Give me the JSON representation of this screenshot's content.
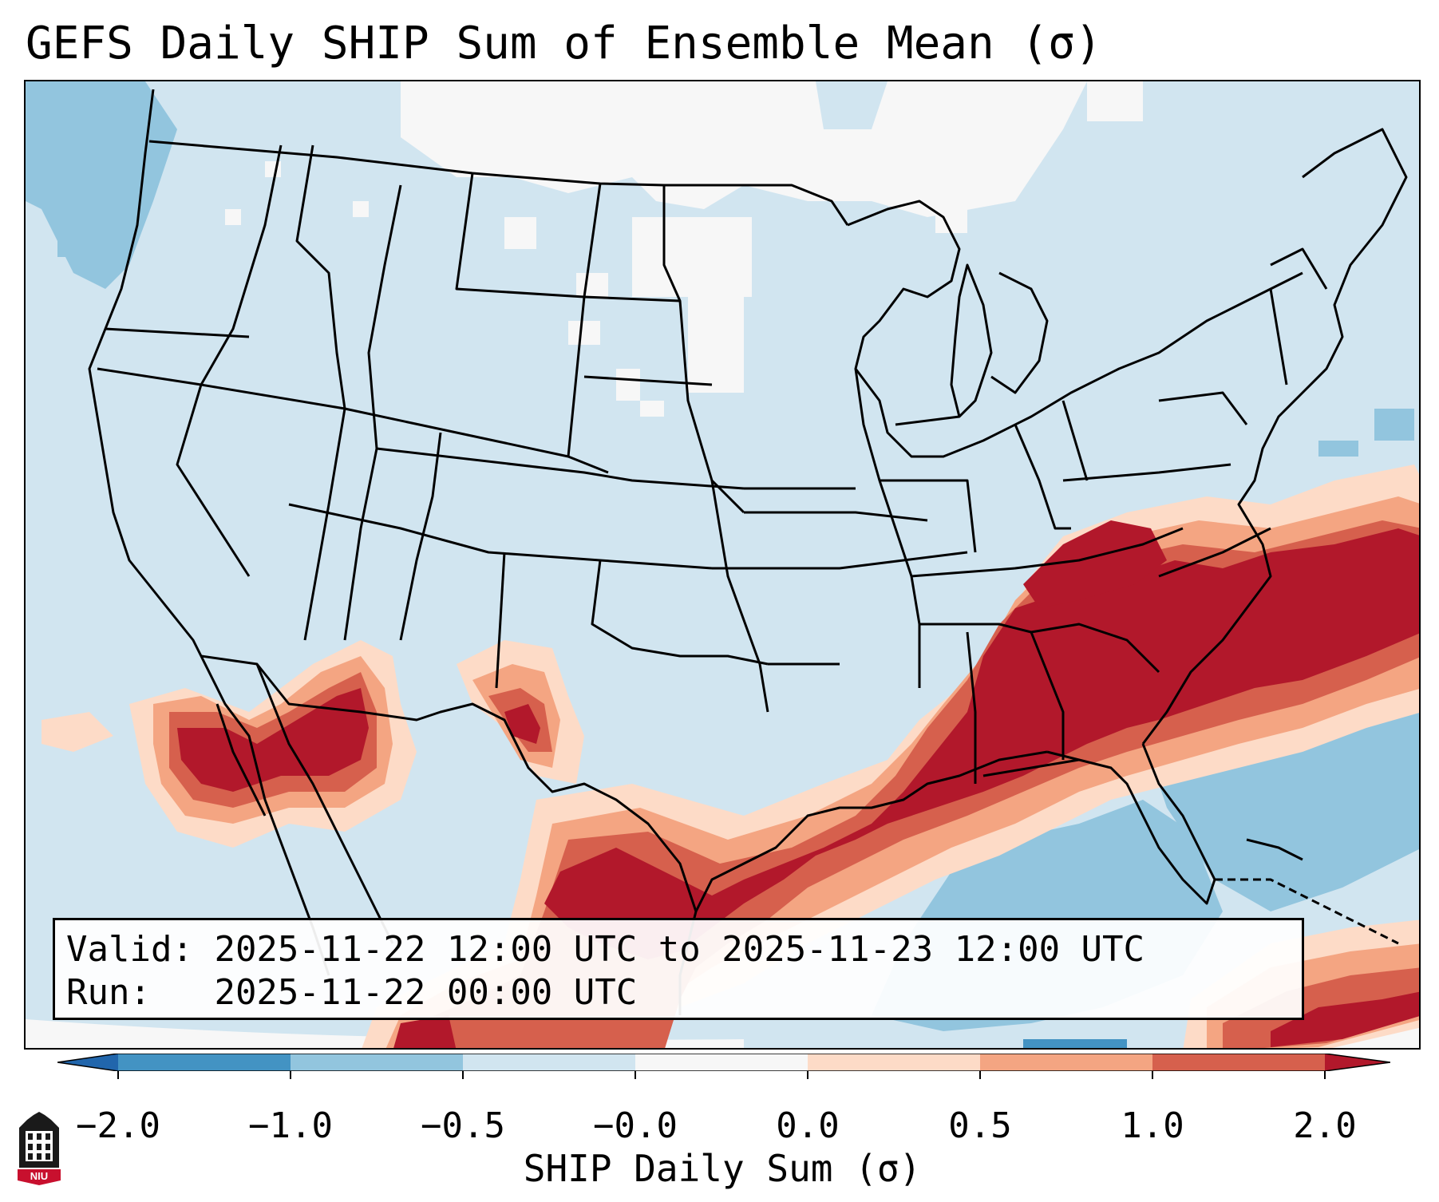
{
  "title": "GEFS Daily SHIP Sum of Ensemble Mean (σ)",
  "info": {
    "valid_label": "Valid:",
    "valid_value": "2025-11-22 12:00 UTC to 2025-11-23 12:00 UTC",
    "run_label": "Run:",
    "run_value": "2025-11-22 00:00 UTC"
  },
  "colorbar": {
    "title": "SHIP Daily Sum (σ)",
    "tick_labels": [
      "−2.0",
      "−1.0",
      "−0.5",
      "−0.0",
      "0.0",
      "0.5",
      "1.0",
      "2.0"
    ],
    "colors": [
      "#4393c3",
      "#92c5de",
      "#d1e5f0",
      "#f7f7f7",
      "#fddbc7",
      "#f4a582",
      "#d6604d"
    ],
    "under_color": "#2166ac",
    "over_color": "#b2182b"
  },
  "logo": {
    "text": "NIU"
  }
}
